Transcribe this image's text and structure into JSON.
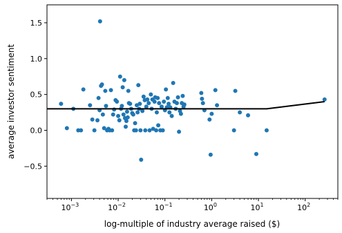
{
  "chart_data": {
    "type": "scatter",
    "title": "",
    "xlabel": "log-multiple of industry average raised ($)",
    "ylabel": "average investor sentiment",
    "xscale": "log",
    "xlim": [
      0.0003,
      500
    ],
    "ylim": [
      -0.95,
      1.75
    ],
    "x_ticks": [
      {
        "value": 0.001,
        "label": "10",
        "exp": "−3"
      },
      {
        "value": 0.01,
        "label": "10",
        "exp": "−2"
      },
      {
        "value": 0.1,
        "label": "10",
        "exp": "−1"
      },
      {
        "value": 1,
        "label": "10",
        "exp": "0"
      },
      {
        "value": 10,
        "label": "10",
        "exp": "1"
      },
      {
        "value": 100,
        "label": "10",
        "exp": "2"
      }
    ],
    "y_ticks": [
      {
        "value": 1.5,
        "label": "1.5"
      },
      {
        "value": 1.0,
        "label": "1.0"
      },
      {
        "value": 0.5,
        "label": "0.5"
      },
      {
        "value": 0.0,
        "label": "0.0"
      },
      {
        "value": -0.5,
        "label": "−0.5"
      }
    ],
    "point_color": "#1f77b4",
    "line_color": "#000000",
    "grid": false,
    "legend": "none",
    "series": [
      {
        "kind": "scatter",
        "points": [
          [
            0.0006,
            0.37
          ],
          [
            0.0008,
            0.03
          ],
          [
            0.0011,
            0.3
          ],
          [
            0.0014,
            0.0
          ],
          [
            0.0016,
            0.0
          ],
          [
            0.0018,
            0.57
          ],
          [
            0.0025,
            0.35
          ],
          [
            0.0028,
            0.15
          ],
          [
            0.0031,
            0.0
          ],
          [
            0.0036,
            0.14
          ],
          [
            0.0038,
            0.45
          ],
          [
            0.004,
            0.28
          ],
          [
            0.0041,
            1.52
          ],
          [
            0.0043,
            0.62
          ],
          [
            0.0045,
            0.64
          ],
          [
            0.0047,
            0.22
          ],
          [
            0.005,
            0.03
          ],
          [
            0.0053,
            0.55
          ],
          [
            0.0055,
            0.34
          ],
          [
            0.0058,
            0.0
          ],
          [
            0.0062,
            0.02
          ],
          [
            0.0066,
            0.0
          ],
          [
            0.007,
            0.56
          ],
          [
            0.0074,
            0.0
          ],
          [
            0.0078,
            0.22
          ],
          [
            0.0082,
            0.29
          ],
          [
            0.0088,
            0.42
          ],
          [
            0.0094,
            0.4
          ],
          [
            0.01,
            0.2
          ],
          [
            0.0106,
            0.14
          ],
          [
            0.011,
            0.75
          ],
          [
            0.0115,
            0.3
          ],
          [
            0.012,
            0.34
          ],
          [
            0.0125,
            0.6
          ],
          [
            0.013,
            0.22
          ],
          [
            0.0135,
            0.7
          ],
          [
            0.014,
            0.17
          ],
          [
            0.0145,
            0.05
          ],
          [
            0.015,
            0.13
          ],
          [
            0.0155,
            0.26
          ],
          [
            0.016,
            0.18
          ],
          [
            0.0165,
            0.55
          ],
          [
            0.017,
            0.38
          ],
          [
            0.018,
            0.37
          ],
          [
            0.019,
            0.3
          ],
          [
            0.02,
            0.24
          ],
          [
            0.021,
            0.22
          ],
          [
            0.022,
            0.0
          ],
          [
            0.023,
            0.1
          ],
          [
            0.024,
            0.0
          ],
          [
            0.025,
            0.35
          ],
          [
            0.026,
            0.25
          ],
          [
            0.027,
            0.63
          ],
          [
            0.028,
            0.3
          ],
          [
            0.029,
            0.37
          ],
          [
            0.03,
            0.0
          ],
          [
            0.031,
            -0.41
          ],
          [
            0.033,
            0.27
          ],
          [
            0.035,
            0.47
          ],
          [
            0.037,
            0.42
          ],
          [
            0.038,
            0.0
          ],
          [
            0.04,
            0.33
          ],
          [
            0.042,
            0.43
          ],
          [
            0.045,
            0.38
          ],
          [
            0.047,
            0.0
          ],
          [
            0.05,
            0.5
          ],
          [
            0.052,
            0.3
          ],
          [
            0.054,
            0.43
          ],
          [
            0.056,
            0.02
          ],
          [
            0.06,
            0.4
          ],
          [
            0.062,
            0.46
          ],
          [
            0.065,
            0.0
          ],
          [
            0.067,
            0.25
          ],
          [
            0.07,
            0.45
          ],
          [
            0.072,
            0.07
          ],
          [
            0.075,
            0.38
          ],
          [
            0.08,
            0.0
          ],
          [
            0.085,
            0.33
          ],
          [
            0.09,
            0.0
          ],
          [
            0.095,
            0.4
          ],
          [
            0.1,
            0.28
          ],
          [
            0.105,
            0.57
          ],
          [
            0.11,
            0.32
          ],
          [
            0.115,
            0.45
          ],
          [
            0.12,
            0.37
          ],
          [
            0.125,
            0.25
          ],
          [
            0.13,
            0.32
          ],
          [
            0.14,
            0.2
          ],
          [
            0.15,
            0.66
          ],
          [
            0.16,
            0.4
          ],
          [
            0.17,
            0.3
          ],
          [
            0.18,
            0.38
          ],
          [
            0.19,
            0.46
          ],
          [
            0.2,
            -0.02
          ],
          [
            0.21,
            0.27
          ],
          [
            0.22,
            0.23
          ],
          [
            0.23,
            0.38
          ],
          [
            0.24,
            0.48
          ],
          [
            0.25,
            0.33
          ],
          [
            0.26,
            0.36
          ],
          [
            0.6,
            0.52
          ],
          [
            0.62,
            0.44
          ],
          [
            0.65,
            0.38
          ],
          [
            0.7,
            0.28
          ],
          [
            0.9,
            0.15
          ],
          [
            0.95,
            -0.34
          ],
          [
            1.0,
            0.23
          ],
          [
            1.2,
            0.56
          ],
          [
            1.3,
            0.35
          ],
          [
            3.0,
            0.0
          ],
          [
            3.2,
            0.55
          ],
          [
            4.0,
            0.25
          ],
          [
            6.0,
            0.21
          ],
          [
            9.0,
            -0.33
          ],
          [
            15.0,
            0.0
          ],
          [
            260.0,
            0.43
          ]
        ]
      },
      {
        "kind": "line",
        "points": [
          [
            0.0003,
            0.3
          ],
          [
            15,
            0.3
          ],
          [
            260,
            0.4
          ]
        ]
      }
    ]
  }
}
